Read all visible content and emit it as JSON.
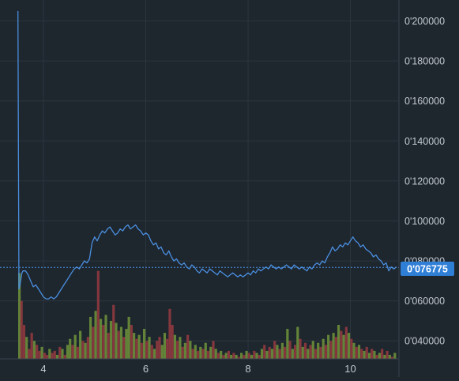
{
  "chart_data": {
    "type": "line",
    "x_ticks": [
      4,
      6,
      8,
      10
    ],
    "x_tick_labels": [
      "4",
      "6",
      "8",
      "10"
    ],
    "y_ticks": [
      0.04,
      0.06,
      0.08,
      0.1,
      0.12,
      0.14,
      0.16,
      0.18,
      0.2
    ],
    "y_tick_labels": [
      "0'040000",
      "0'060000",
      "0'080000",
      "0'100000",
      "0'120000",
      "0'140000",
      "0'160000",
      "0'180000",
      "0'200000"
    ],
    "xlim": [
      3.15,
      10.95
    ],
    "ylim": [
      0.031,
      0.2105
    ],
    "grid": true,
    "last_price": 0.076775,
    "last_price_label": "0'076775",
    "series": [
      {
        "kind": "price-line",
        "color": "#4a8fe0",
        "x": [
          3.5,
          3.52,
          3.54,
          3.56,
          3.58,
          3.6,
          3.65,
          3.7,
          3.75,
          3.8,
          3.85,
          3.9,
          3.95,
          4.0,
          4.05,
          4.1,
          4.15,
          4.2,
          4.25,
          4.3,
          4.35,
          4.4,
          4.45,
          4.5,
          4.55,
          4.6,
          4.65,
          4.7,
          4.75,
          4.8,
          4.85,
          4.9,
          4.95,
          5.0,
          5.05,
          5.1,
          5.15,
          5.2,
          5.25,
          5.3,
          5.35,
          5.4,
          5.45,
          5.5,
          5.55,
          5.6,
          5.65,
          5.7,
          5.75,
          5.8,
          5.85,
          5.9,
          5.95,
          6.0,
          6.05,
          6.1,
          6.15,
          6.2,
          6.25,
          6.3,
          6.35,
          6.4,
          6.45,
          6.5,
          6.55,
          6.6,
          6.65,
          6.7,
          6.75,
          6.8,
          6.85,
          6.9,
          6.95,
          7.0,
          7.05,
          7.1,
          7.15,
          7.2,
          7.25,
          7.3,
          7.35,
          7.4,
          7.45,
          7.5,
          7.55,
          7.6,
          7.65,
          7.7,
          7.75,
          7.8,
          7.85,
          7.9,
          7.95,
          8.0,
          8.05,
          8.1,
          8.15,
          8.2,
          8.25,
          8.3,
          8.35,
          8.4,
          8.45,
          8.5,
          8.55,
          8.6,
          8.65,
          8.7,
          8.75,
          8.8,
          8.85,
          8.9,
          8.95,
          9.0,
          9.05,
          9.1,
          9.15,
          9.2,
          9.25,
          9.3,
          9.35,
          9.4,
          9.45,
          9.5,
          9.55,
          9.6,
          9.65,
          9.7,
          9.75,
          9.8,
          9.85,
          9.9,
          9.95,
          10.0,
          10.05,
          10.1,
          10.15,
          10.2,
          10.25,
          10.3,
          10.35,
          10.4,
          10.45,
          10.5,
          10.55,
          10.6,
          10.65,
          10.7,
          10.75,
          10.8,
          10.85,
          10.9
        ],
        "y": [
          0.205,
          0.066,
          0.068,
          0.071,
          0.074,
          0.075,
          0.075,
          0.073,
          0.07,
          0.067,
          0.068,
          0.066,
          0.064,
          0.062,
          0.061,
          0.061,
          0.062,
          0.061,
          0.062,
          0.064,
          0.066,
          0.068,
          0.07,
          0.072,
          0.074,
          0.076,
          0.077,
          0.076,
          0.078,
          0.08,
          0.079,
          0.081,
          0.089,
          0.092,
          0.09,
          0.093,
          0.095,
          0.094,
          0.096,
          0.097,
          0.095,
          0.093,
          0.094,
          0.096,
          0.095,
          0.097,
          0.098,
          0.096,
          0.097,
          0.098,
          0.096,
          0.095,
          0.093,
          0.094,
          0.093,
          0.09,
          0.088,
          0.089,
          0.086,
          0.087,
          0.084,
          0.083,
          0.085,
          0.082,
          0.08,
          0.081,
          0.079,
          0.078,
          0.079,
          0.077,
          0.076,
          0.078,
          0.077,
          0.075,
          0.074,
          0.076,
          0.075,
          0.074,
          0.076,
          0.075,
          0.074,
          0.073,
          0.075,
          0.074,
          0.073,
          0.072,
          0.073,
          0.074,
          0.073,
          0.072,
          0.073,
          0.072,
          0.073,
          0.074,
          0.073,
          0.075,
          0.074,
          0.076,
          0.075,
          0.076,
          0.077,
          0.076,
          0.078,
          0.077,
          0.076,
          0.077,
          0.076,
          0.077,
          0.078,
          0.077,
          0.076,
          0.078,
          0.077,
          0.076,
          0.077,
          0.076,
          0.075,
          0.077,
          0.076,
          0.078,
          0.079,
          0.078,
          0.08,
          0.079,
          0.082,
          0.084,
          0.087,
          0.085,
          0.086,
          0.088,
          0.087,
          0.089,
          0.088,
          0.09,
          0.092,
          0.09,
          0.089,
          0.087,
          0.088,
          0.086,
          0.085,
          0.084,
          0.082,
          0.083,
          0.081,
          0.08,
          0.078,
          0.079,
          0.075,
          0.077,
          0.076,
          0.077
        ]
      },
      {
        "kind": "volume-bars",
        "up_color": "#6a8f3a",
        "down_color": "#8f3a3f",
        "bars": [
          [
            3.53,
            74,
            1
          ],
          [
            3.57,
            60,
            0
          ],
          [
            3.62,
            48,
            0
          ],
          [
            3.67,
            42,
            1
          ],
          [
            3.72,
            36,
            0
          ],
          [
            3.77,
            44,
            0
          ],
          [
            3.82,
            40,
            1
          ],
          [
            3.87,
            38,
            0
          ],
          [
            3.92,
            35,
            0
          ],
          [
            3.97,
            37,
            1
          ],
          [
            4.02,
            34,
            0
          ],
          [
            4.07,
            33,
            0
          ],
          [
            4.12,
            36,
            1
          ],
          [
            4.17,
            34,
            0
          ],
          [
            4.22,
            35,
            0
          ],
          [
            4.27,
            33,
            1
          ],
          [
            4.32,
            37,
            0
          ],
          [
            4.37,
            36,
            1
          ],
          [
            4.42,
            33,
            0
          ],
          [
            4.47,
            38,
            1
          ],
          [
            4.52,
            41,
            1
          ],
          [
            4.57,
            38,
            0
          ],
          [
            4.62,
            43,
            1
          ],
          [
            4.67,
            37,
            0
          ],
          [
            4.72,
            45,
            1
          ],
          [
            4.77,
            40,
            0
          ],
          [
            4.82,
            39,
            1
          ],
          [
            4.87,
            42,
            0
          ],
          [
            4.92,
            52,
            1
          ],
          [
            4.97,
            47,
            0
          ],
          [
            5.02,
            55,
            1
          ],
          [
            5.07,
            75,
            0
          ],
          [
            5.12,
            51,
            1
          ],
          [
            5.17,
            48,
            0
          ],
          [
            5.22,
            53,
            1
          ],
          [
            5.27,
            44,
            0
          ],
          [
            5.32,
            50,
            1
          ],
          [
            5.37,
            58,
            0
          ],
          [
            5.42,
            49,
            1
          ],
          [
            5.47,
            45,
            0
          ],
          [
            5.52,
            47,
            1
          ],
          [
            5.57,
            42,
            0
          ],
          [
            5.62,
            46,
            1
          ],
          [
            5.67,
            52,
            1
          ],
          [
            5.72,
            48,
            0
          ],
          [
            5.77,
            44,
            1
          ],
          [
            5.82,
            41,
            0
          ],
          [
            5.87,
            43,
            1
          ],
          [
            5.92,
            39,
            0
          ],
          [
            5.97,
            46,
            1
          ],
          [
            6.02,
            40,
            0
          ],
          [
            6.07,
            42,
            1
          ],
          [
            6.12,
            38,
            0
          ],
          [
            6.17,
            36,
            1
          ],
          [
            6.22,
            40,
            0
          ],
          [
            6.27,
            42,
            0
          ],
          [
            6.32,
            38,
            1
          ],
          [
            6.37,
            44,
            1
          ],
          [
            6.42,
            41,
            0
          ],
          [
            6.47,
            56,
            0
          ],
          [
            6.52,
            48,
            0
          ],
          [
            6.57,
            43,
            1
          ],
          [
            6.62,
            40,
            0
          ],
          [
            6.67,
            42,
            1
          ],
          [
            6.72,
            37,
            0
          ],
          [
            6.77,
            39,
            1
          ],
          [
            6.82,
            43,
            0
          ],
          [
            6.87,
            40,
            1
          ],
          [
            6.92,
            36,
            0
          ],
          [
            6.97,
            38,
            1
          ],
          [
            7.02,
            35,
            0
          ],
          [
            7.07,
            37,
            1
          ],
          [
            7.12,
            36,
            0
          ],
          [
            7.17,
            39,
            1
          ],
          [
            7.22,
            35,
            0
          ],
          [
            7.27,
            37,
            1
          ],
          [
            7.32,
            40,
            0
          ],
          [
            7.37,
            36,
            1
          ],
          [
            7.42,
            34,
            0
          ],
          [
            7.47,
            35,
            1
          ],
          [
            7.52,
            33,
            0
          ],
          [
            7.57,
            34,
            1
          ],
          [
            7.62,
            35,
            0
          ],
          [
            7.67,
            33,
            1
          ],
          [
            7.72,
            34,
            0
          ],
          [
            7.77,
            33,
            1
          ],
          [
            7.82,
            32,
            0
          ],
          [
            7.87,
            34,
            1
          ],
          [
            7.92,
            33,
            0
          ],
          [
            7.97,
            35,
            1
          ],
          [
            8.02,
            34,
            0
          ],
          [
            8.07,
            33,
            1
          ],
          [
            8.12,
            35,
            0
          ],
          [
            8.17,
            34,
            1
          ],
          [
            8.22,
            33,
            0
          ],
          [
            8.27,
            36,
            1
          ],
          [
            8.32,
            38,
            0
          ],
          [
            8.37,
            35,
            1
          ],
          [
            8.42,
            37,
            0
          ],
          [
            8.47,
            36,
            1
          ],
          [
            8.52,
            40,
            0
          ],
          [
            8.57,
            38,
            1
          ],
          [
            8.62,
            36,
            0
          ],
          [
            8.67,
            39,
            1
          ],
          [
            8.72,
            37,
            0
          ],
          [
            8.77,
            46,
            1
          ],
          [
            8.82,
            40,
            0
          ],
          [
            8.87,
            36,
            1
          ],
          [
            8.92,
            38,
            0
          ],
          [
            8.97,
            47,
            1
          ],
          [
            9.02,
            41,
            0
          ],
          [
            9.07,
            37,
            1
          ],
          [
            9.12,
            39,
            0
          ],
          [
            9.17,
            36,
            1
          ],
          [
            9.22,
            38,
            0
          ],
          [
            9.27,
            40,
            1
          ],
          [
            9.32,
            36,
            0
          ],
          [
            9.37,
            39,
            1
          ],
          [
            9.42,
            37,
            0
          ],
          [
            9.47,
            41,
            1
          ],
          [
            9.52,
            38,
            0
          ],
          [
            9.57,
            43,
            1
          ],
          [
            9.62,
            40,
            0
          ],
          [
            9.67,
            44,
            1
          ],
          [
            9.72,
            42,
            0
          ],
          [
            9.77,
            48,
            1
          ],
          [
            9.82,
            45,
            0
          ],
          [
            9.87,
            43,
            1
          ],
          [
            9.92,
            47,
            0
          ],
          [
            9.97,
            44,
            1
          ],
          [
            10.02,
            41,
            0
          ],
          [
            10.07,
            39,
            1
          ],
          [
            10.12,
            37,
            0
          ],
          [
            10.17,
            38,
            1
          ],
          [
            10.22,
            36,
            0
          ],
          [
            10.27,
            35,
            1
          ],
          [
            10.32,
            37,
            0
          ],
          [
            10.37,
            34,
            1
          ],
          [
            10.42,
            36,
            0
          ],
          [
            10.47,
            35,
            1
          ],
          [
            10.52,
            33,
            0
          ],
          [
            10.57,
            34,
            1
          ],
          [
            10.62,
            36,
            0
          ],
          [
            10.67,
            33,
            1
          ],
          [
            10.72,
            35,
            0
          ],
          [
            10.77,
            33,
            1
          ],
          [
            10.82,
            32,
            0
          ],
          [
            10.87,
            34,
            1
          ]
        ]
      }
    ]
  }
}
